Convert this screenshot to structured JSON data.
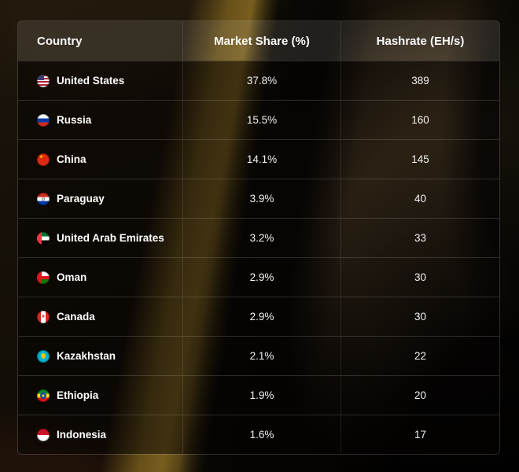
{
  "chart_data": {
    "type": "table",
    "title": "",
    "columns": [
      {
        "label": "Country"
      },
      {
        "label": "Market Share (%)"
      },
      {
        "label": "Hashrate (EH/s)"
      }
    ],
    "rows": [
      {
        "flag": "us",
        "country": "United States",
        "market_share": "37.8%",
        "hashrate": "389"
      },
      {
        "flag": "ru",
        "country": "Russia",
        "market_share": "15.5%",
        "hashrate": "160"
      },
      {
        "flag": "cn",
        "country": "China",
        "market_share": "14.1%",
        "hashrate": "145"
      },
      {
        "flag": "py",
        "country": "Paraguay",
        "market_share": "3.9%",
        "hashrate": "40"
      },
      {
        "flag": "ae",
        "country": "United Arab Emirates",
        "market_share": "3.2%",
        "hashrate": "33"
      },
      {
        "flag": "om",
        "country": "Oman",
        "market_share": "2.9%",
        "hashrate": "30"
      },
      {
        "flag": "ca",
        "country": "Canada",
        "market_share": "2.9%",
        "hashrate": "30"
      },
      {
        "flag": "kz",
        "country": "Kazakhstan",
        "market_share": "2.1%",
        "hashrate": "22"
      },
      {
        "flag": "et",
        "country": "Ethiopia",
        "market_share": "1.9%",
        "hashrate": "20"
      },
      {
        "flag": "id",
        "country": "Indonesia",
        "market_share": "1.6%",
        "hashrate": "17"
      }
    ]
  },
  "colors": {
    "backdrop_gold": "#826620",
    "backdrop_brown": "#544329",
    "backdrop_base": "#120d06",
    "header_bg": "rgba(255,255,255,0.10)",
    "row_bg": "rgba(4,3,2,0.48)",
    "border": "rgba(255,255,255,0.15)",
    "text": "#ffffff"
  }
}
